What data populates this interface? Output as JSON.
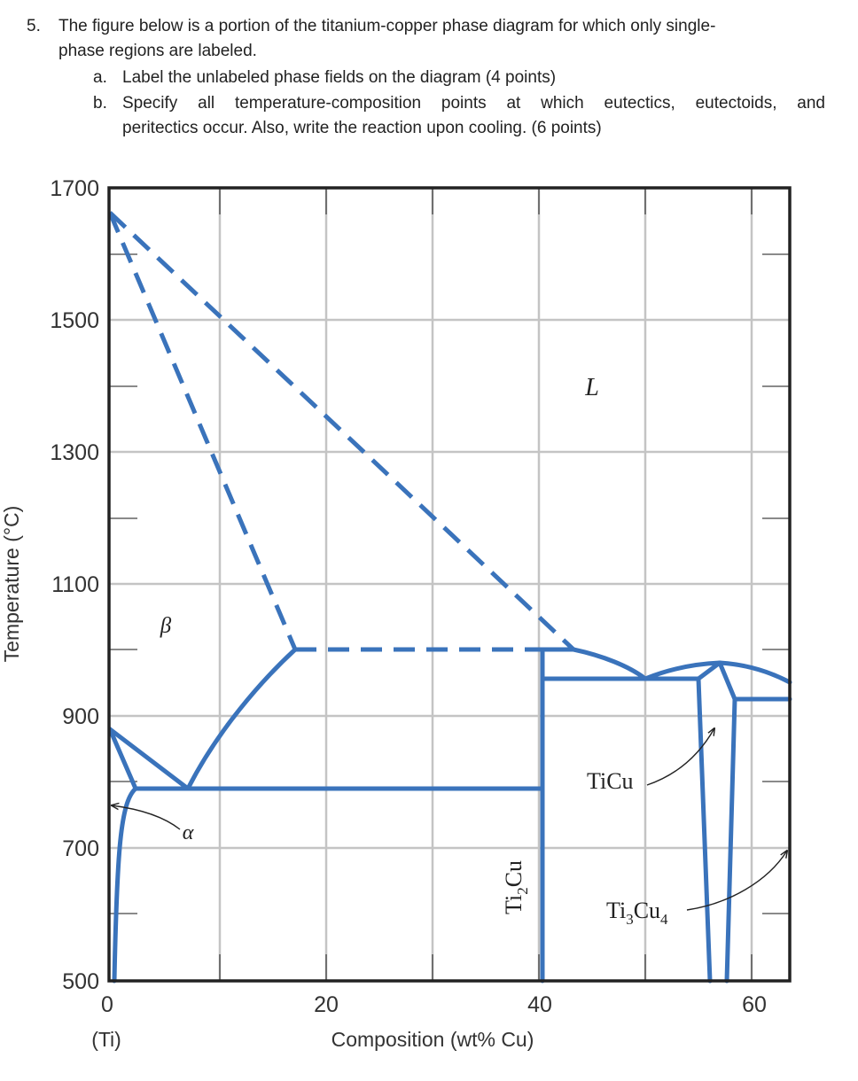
{
  "question": {
    "number": "5.",
    "line1": "The figure below is a portion of the titanium-copper phase diagram for which only single-",
    "line2": "phase regions are labeled.",
    "a_letter": "a.",
    "a_text": "Label the unlabeled phase fields on the diagram (4 points)",
    "b_letter": "b.",
    "b_text1": "Specify all temperature-composition points at which eutectics, eutectoids, and",
    "b_text2": "peritectics occur. Also, write the reaction upon cooling. (6 points)"
  },
  "diagram": {
    "y_axis_label": "Temperature (°C)",
    "x_axis_label": "Composition (wt% Cu)",
    "x_sublabel": "(Ti)",
    "y_ticks": [
      "1700",
      "1500",
      "1300",
      "1100",
      "900",
      "700",
      "500"
    ],
    "x_ticks": [
      "0",
      "20",
      "40",
      "60"
    ],
    "labels": {
      "liquid": "L",
      "beta": "β",
      "alpha": "α",
      "ti2cu": "Ti",
      "ti2cu_sub": "2",
      "ti2cu_tail": "Cu",
      "ticu": "TiCu",
      "ti3cu4_a": "Ti",
      "ti3cu4_sub1": "3",
      "ti3cu4_b": "Cu",
      "ti3cu4_sub2": "4"
    },
    "line_color": "#3a73bb",
    "grid_color": "#c4c4c4",
    "frame_color": "#222222"
  }
}
